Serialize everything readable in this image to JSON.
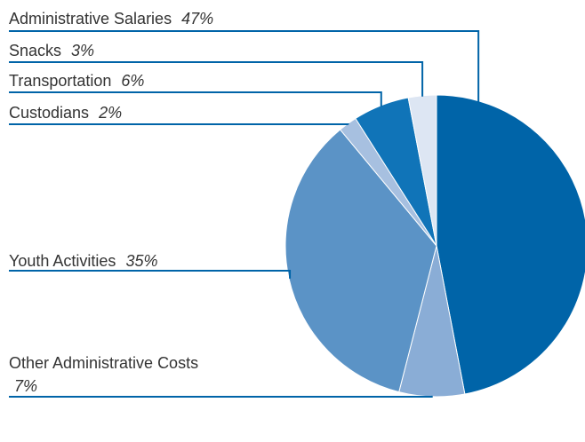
{
  "chart_data": {
    "type": "pie",
    "categories": [
      "Administrative Salaries",
      "Other Administrative Costs",
      "Youth Activities",
      "Custodians",
      "Transportation",
      "Snacks"
    ],
    "values": [
      47,
      7,
      35,
      2,
      6,
      3
    ],
    "value_labels": [
      "47%",
      "7%",
      "35%",
      "2%",
      "6%",
      "3%"
    ],
    "colors": [
      "#0064a8",
      "#8aadd6",
      "#5b93c6",
      "#a7c0e0",
      "#1074b8",
      "#dde6f3"
    ]
  }
}
